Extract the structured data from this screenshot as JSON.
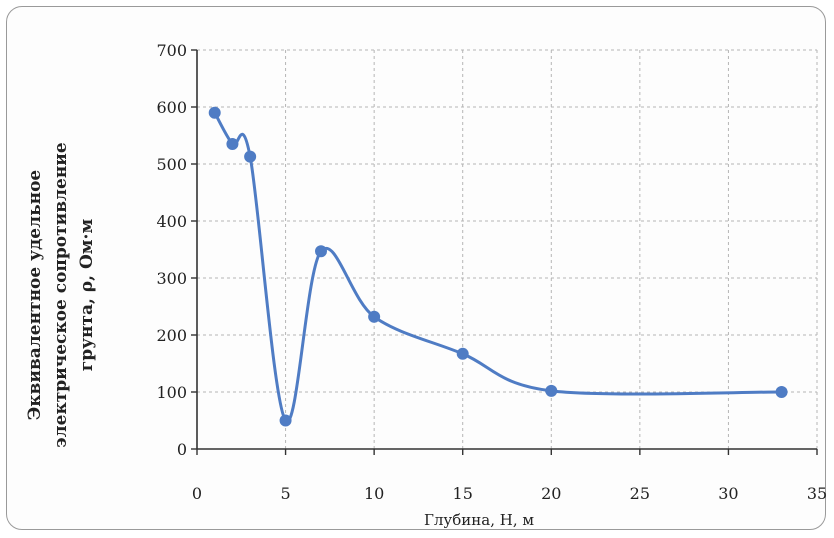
{
  "chart_data": {
    "type": "line",
    "smooth": true,
    "xlabel": "Глубина, H, м",
    "ylabel_lines": [
      "Эквивалентное удельное",
      "электрическое сопротивление",
      "грунта, ρ, Ом·м"
    ],
    "xlim": [
      0,
      35
    ],
    "ylim": [
      0,
      700
    ],
    "xticks": [
      0,
      5,
      10,
      15,
      20,
      25,
      30,
      35
    ],
    "yticks": [
      0,
      100,
      200,
      300,
      400,
      500,
      600,
      700
    ],
    "grid": true,
    "series": [
      {
        "color": "#4f7cc4",
        "points": [
          {
            "x": 1,
            "y": 590
          },
          {
            "x": 2,
            "y": 535
          },
          {
            "x": 3,
            "y": 513
          },
          {
            "x": 5,
            "y": 50
          },
          {
            "x": 7,
            "y": 347
          },
          {
            "x": 10,
            "y": 232
          },
          {
            "x": 15,
            "y": 167
          },
          {
            "x": 20,
            "y": 102
          },
          {
            "x": 33,
            "y": 100
          }
        ]
      }
    ]
  }
}
